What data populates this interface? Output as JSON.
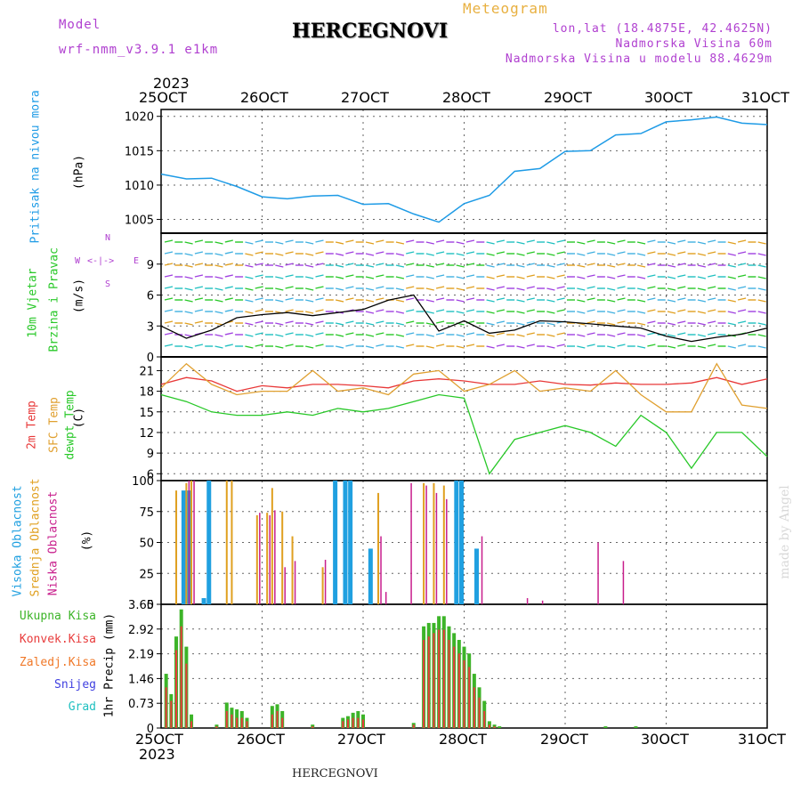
{
  "header": {
    "model_label": "Model",
    "model_name": "wrf-nmm_v3.9.1 e1km",
    "title": "HERCEGNOVI",
    "meteogram_label": "Meteogram",
    "lonlat": "lon,lat (18.4875E, 42.4625N)",
    "elevation": "Nadmorska Visina 60m",
    "model_elevation": "Nadmorska Visina u modelu 88.4629m",
    "footer_title": "HERCEGNOVI",
    "watermark": "made by Angel"
  },
  "colors": {
    "pressure": "#1e9be6",
    "temp2m": "#e83838",
    "sfc": "#e0a030",
    "dewpt": "#28c828",
    "high_cloud": "#20a0e0",
    "mid_cloud": "#e0a020",
    "low_cloud": "#c81e8c",
    "total_rain": "#3cb428",
    "conv_rain": "#e83c3c",
    "frozen_rain": "#f07828",
    "snow": "#4040e0",
    "hail": "#20c0c0",
    "purple_text": "#b040d0",
    "meteo_text": "#e8b040"
  },
  "axis": {
    "year": "2023",
    "dates": [
      "25OCT",
      "26OCT",
      "27OCT",
      "28OCT",
      "29OCT",
      "30OCT",
      "31OCT"
    ]
  },
  "panels": {
    "pressure": {
      "label1": "Pritisak na nivou mora",
      "unit": "(hPa)"
    },
    "wind": {
      "label1": "10m Vjetar",
      "label2": "Brzina i Pravac",
      "unit": "(m/s)",
      "compass_n": "N",
      "compass_w": "W",
      "compass_e": "E",
      "compass_s": "S"
    },
    "temp": {
      "label1": "2m Temp",
      "label2": "SFC Temp",
      "label3": "dewpt Temp",
      "unit": "(C)"
    },
    "cloud": {
      "label1": "Visoka Oblacnost",
      "label2": "Srednja Oblacnost",
      "label3": "Niska Oblacnost",
      "unit": "(%)"
    },
    "precip": {
      "unit": "1hr Precip (mm)"
    }
  },
  "legend": [
    "Ukupna Kisa",
    "Konvek.Kisa",
    "Zaledj.Kisa",
    "Snijeg",
    "Grad"
  ],
  "chart_data": [
    {
      "type": "line",
      "name": "pressure",
      "ylim": [
        1003,
        1021
      ],
      "yticks": [
        1005,
        1010,
        1015,
        1020
      ],
      "x": [
        0,
        0.25,
        0.5,
        0.75,
        1,
        1.25,
        1.5,
        1.75,
        2,
        2.25,
        2.5,
        2.75,
        3,
        3.25,
        3.5,
        3.75,
        4,
        4.25,
        4.5,
        4.75,
        5,
        5.25,
        5.5,
        5.75,
        6
      ],
      "series": [
        {
          "values": [
            1011.6,
            1010.9,
            1011.0,
            1009.8,
            1008.3,
            1008.0,
            1008.4,
            1008.5,
            1007.2,
            1007.3,
            1005.8,
            1004.6,
            1007.3,
            1008.5,
            1012.0,
            1012.4,
            1014.9,
            1015.0,
            1017.3,
            1017.5,
            1019.2,
            1019.5,
            1019.9,
            1019.0,
            1018.8
          ]
        }
      ]
    },
    {
      "type": "line",
      "name": "wind",
      "ylim": [
        0,
        12
      ],
      "yticks": [
        0,
        3,
        6,
        9
      ],
      "x": [
        0,
        0.25,
        0.5,
        0.75,
        1,
        1.25,
        1.5,
        1.75,
        2,
        2.25,
        2.5,
        2.75,
        3,
        3.25,
        3.5,
        3.75,
        4,
        4.25,
        4.5,
        4.75,
        5,
        5.25,
        5.5,
        5.75,
        6
      ],
      "series": [
        {
          "values": [
            3.0,
            1.8,
            2.6,
            3.8,
            4.1,
            4.3,
            4.0,
            4.3,
            4.6,
            5.5,
            6.0,
            2.5,
            3.5,
            2.3,
            2.6,
            3.5,
            3.4,
            3.2,
            3.0,
            2.8,
            2.0,
            1.5,
            1.9,
            2.2,
            2.8
          ]
        }
      ]
    },
    {
      "type": "line",
      "name": "temperature",
      "ylim": [
        5,
        23
      ],
      "yticks": [
        6,
        9,
        12,
        15,
        18,
        21
      ],
      "x": [
        0,
        0.25,
        0.5,
        0.75,
        1,
        1.25,
        1.5,
        1.75,
        2,
        2.25,
        2.5,
        2.75,
        3,
        3.25,
        3.5,
        3.75,
        4,
        4.25,
        4.5,
        4.75,
        5,
        5.25,
        5.5,
        5.75,
        6
      ],
      "series": [
        {
          "name": "2m Temp",
          "values": [
            19.0,
            20.0,
            19.5,
            18.0,
            18.8,
            18.5,
            19.0,
            19.0,
            18.8,
            18.5,
            19.5,
            19.8,
            19.5,
            19.0,
            19.0,
            19.5,
            19.0,
            18.9,
            19.2,
            19.0,
            19.0,
            19.2,
            20.0,
            19.0,
            19.8
          ]
        },
        {
          "name": "SFC Temp",
          "values": [
            18.5,
            22.0,
            19.0,
            17.5,
            18.0,
            18.0,
            21.0,
            18.0,
            18.5,
            17.5,
            20.5,
            21.0,
            18.0,
            19.0,
            21.0,
            18.0,
            18.5,
            18.0,
            21.0,
            17.5,
            15.0,
            15.0,
            22.0,
            16.0,
            15.5
          ]
        },
        {
          "name": "dewpt Temp",
          "values": [
            17.5,
            16.5,
            15.0,
            14.5,
            14.5,
            15.0,
            14.5,
            15.5,
            15.0,
            15.5,
            16.5,
            17.5,
            17.0,
            6.0,
            11.0,
            12.0,
            13.0,
            12.0,
            10.0,
            14.5,
            12.0,
            6.8,
            12.0,
            12.0,
            8.5
          ]
        }
      ]
    },
    {
      "type": "bar",
      "name": "cloudiness",
      "ylim": [
        0,
        100
      ],
      "yticks": [
        0,
        25,
        50,
        75,
        100
      ],
      "x": [
        0.15,
        0.25,
        0.3,
        0.45,
        0.5,
        0.65,
        0.7,
        0.95,
        1.05,
        1.1,
        1.2,
        1.3,
        1.6,
        1.75,
        1.85,
        1.9,
        2.1,
        2.15,
        2.2,
        2.45,
        2.6,
        2.7,
        2.8,
        2.95,
        3.0,
        3.15,
        3.6,
        3.75,
        4.3,
        4.55
      ],
      "series": [
        {
          "name": "Visoka Oblacnost",
          "values": [
            0,
            92,
            92,
            5,
            100,
            0,
            0,
            0,
            0,
            0,
            0,
            0,
            0,
            100,
            100,
            100,
            45,
            0,
            0,
            0,
            0,
            0,
            0,
            100,
            100,
            45,
            0,
            0,
            0,
            0
          ]
        },
        {
          "name": "Srednja Oblacnost",
          "values": [
            92,
            98,
            100,
            0,
            0,
            100,
            100,
            72,
            74,
            94,
            75,
            55,
            30,
            0,
            0,
            0,
            0,
            90,
            0,
            0,
            98,
            98,
            96,
            0,
            0,
            0,
            0,
            0,
            0,
            0
          ]
        },
        {
          "name": "Niska Oblacnost",
          "values": [
            0,
            100,
            100,
            0,
            0,
            0,
            0,
            74,
            72,
            76,
            30,
            35,
            36,
            0,
            0,
            0,
            0,
            55,
            10,
            98,
            96,
            90,
            85,
            0,
            0,
            55,
            5,
            3,
            50,
            35
          ]
        }
      ]
    },
    {
      "type": "bar",
      "name": "precipitation",
      "ylim": [
        0,
        3.65
      ],
      "yticks": [
        0,
        0.73,
        1.46,
        2.19,
        2.92,
        3.65
      ],
      "x": [
        0.05,
        0.1,
        0.15,
        0.2,
        0.25,
        0.3,
        0.55,
        0.65,
        0.7,
        0.75,
        0.8,
        0.85,
        1.1,
        1.15,
        1.2,
        1.5,
        1.8,
        1.85,
        1.9,
        1.95,
        2.0,
        2.5,
        2.6,
        2.65,
        2.7,
        2.75,
        2.8,
        2.85,
        2.9,
        2.95,
        3.0,
        3.05,
        3.1,
        3.15,
        3.2,
        3.25,
        3.3,
        3.35,
        4.4,
        4.7
      ],
      "series": [
        {
          "name": "Ukupna Kisa",
          "values": [
            1.6,
            1.0,
            2.7,
            3.5,
            2.4,
            0.4,
            0.1,
            0.75,
            0.6,
            0.55,
            0.5,
            0.3,
            0.65,
            0.7,
            0.5,
            0.1,
            0.3,
            0.35,
            0.45,
            0.5,
            0.4,
            0.15,
            3.0,
            3.1,
            3.1,
            3.3,
            3.3,
            3.0,
            2.8,
            2.6,
            2.4,
            2.2,
            1.6,
            1.2,
            0.8,
            0.2,
            0.1,
            0.05,
            0.05,
            0.05
          ]
        },
        {
          "name": "Konvek.Kisa",
          "values": [
            1.2,
            0.8,
            2.3,
            3.0,
            1.9,
            0.2,
            0.05,
            0.5,
            0.4,
            0.3,
            0.3,
            0.2,
            0.4,
            0.5,
            0.3,
            0.05,
            0.2,
            0.25,
            0.3,
            0.3,
            0.25,
            0.1,
            2.6,
            2.7,
            2.8,
            2.9,
            2.9,
            2.6,
            2.4,
            2.2,
            2.0,
            1.8,
            1.2,
            0.9,
            0.5,
            0.1,
            0.05,
            0.0,
            0.0,
            0.0
          ]
        }
      ]
    }
  ]
}
